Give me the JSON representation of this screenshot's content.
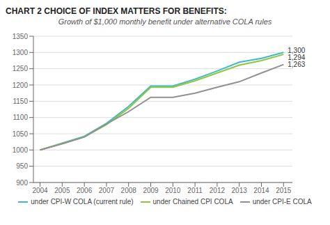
{
  "chart_data": {
    "type": "line",
    "title": "CHART 2 CHOICE OF INDEX MATTERS FOR BENEFITS:",
    "subtitle": "Growth of $1,000 monthly benefit under alternative COLA rules",
    "x": [
      2004,
      2005,
      2006,
      2007,
      2008,
      2009,
      2010,
      2011,
      2012,
      2013,
      2014,
      2015
    ],
    "xlim": [
      2003.7,
      2015.4
    ],
    "xticks": [
      2004,
      2005,
      2006,
      2007,
      2008,
      2009,
      2010,
      2011,
      2012,
      2013,
      2014,
      2015
    ],
    "ylim": [
      900,
      1350
    ],
    "yticks": [
      900,
      950,
      1000,
      1050,
      1100,
      1150,
      1200,
      1250,
      1300,
      1350
    ],
    "series": [
      {
        "name": "under CPI-W COLA (current rule)",
        "color": "#41b8c4",
        "values": [
          1000,
          1021,
          1042,
          1082,
          1134,
          1197,
          1197,
          1218,
          1243,
          1270,
          1282,
          1300
        ]
      },
      {
        "name": "under Chained CPI COLA",
        "color": "#8dc63f",
        "values": [
          1000,
          1020,
          1040,
          1078,
          1128,
          1193,
          1193,
          1213,
          1237,
          1261,
          1275,
          1294
        ]
      },
      {
        "name": "under CPI-E COLA",
        "color": "#909090",
        "values": [
          1000,
          1019,
          1040,
          1080,
          1118,
          1162,
          1162,
          1175,
          1193,
          1210,
          1237,
          1263
        ]
      }
    ],
    "grid": true,
    "legend": "bottom",
    "annotations": [
      {
        "text": "1,300",
        "x": 2015,
        "y": 1300
      },
      {
        "text": "1,294",
        "x": 2015,
        "y": 1294
      },
      {
        "text": "1,263",
        "x": 2015,
        "y": 1263
      }
    ]
  }
}
